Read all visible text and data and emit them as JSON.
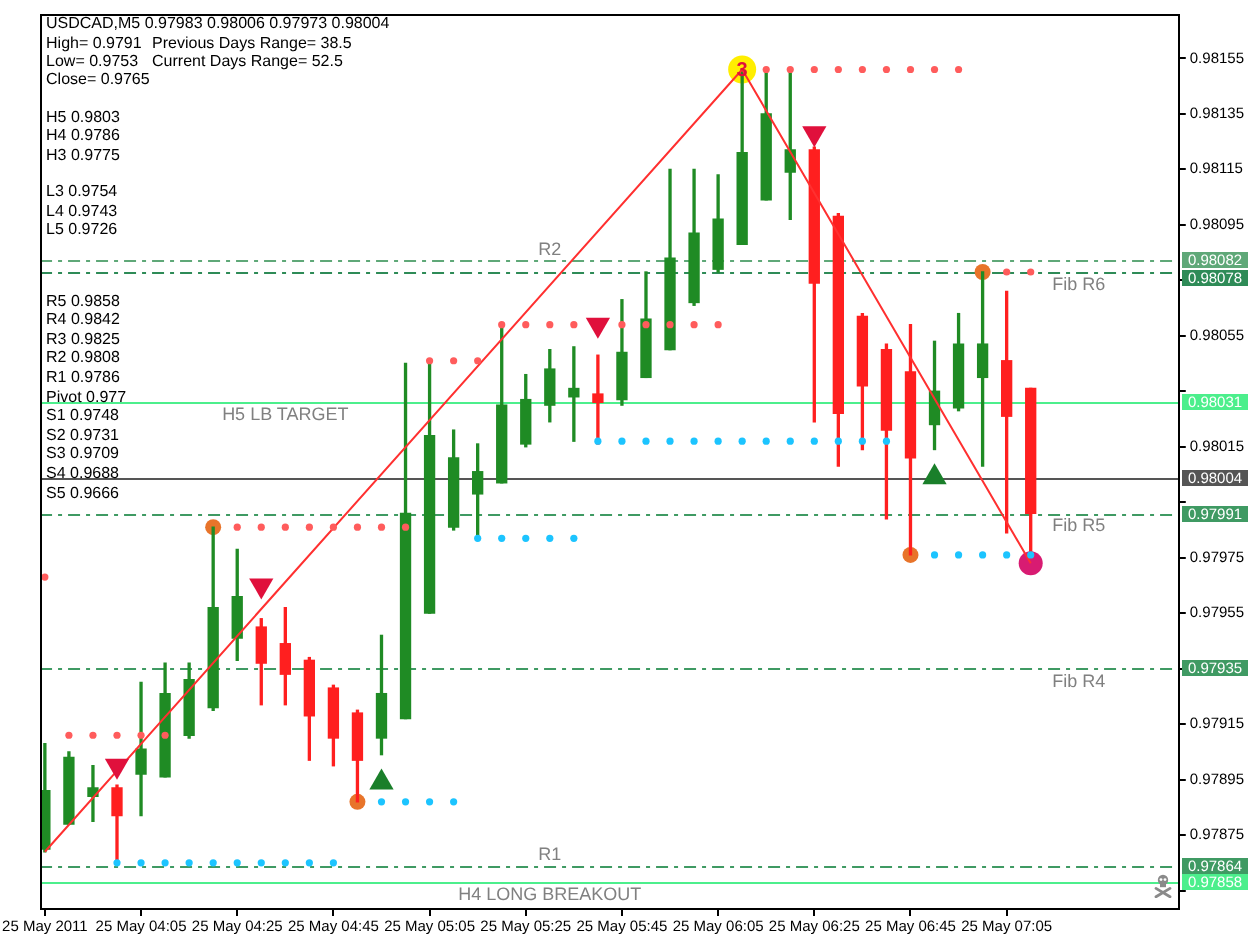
{
  "chart_data": {
    "type": "candlestick",
    "title": "USDCAD,M5 0.97983 0.98006 0.97973 0.98004",
    "annotations": [
      "High= 0.9791",
      "Previous Days Range= 38.5",
      "Low= 0.9753",
      "Current Days Range= 52.5",
      "Close= 0.9765",
      "H5 0.9803",
      "H4 0.9786",
      "H3 0.9775",
      "L3 0.9754",
      "L4 0.9743",
      "L5 0.9726",
      "R5 0.9858",
      "R4 0.9842",
      "R3 0.9825",
      "R2 0.9808",
      "R1 0.9786",
      "Pivot 0.977",
      "S1 0.9748",
      "S2 0.9731",
      "S3 0.9709",
      "S4 0.9688",
      "S5 0.9666",
      {
        "text": "R2",
        "x": "2011-05-25T05:30",
        "y": 0.98082
      },
      {
        "text": "Fib R6",
        "x": "2011-05-25T07:20",
        "y": 0.98078
      },
      {
        "text": "H5 LB TARGET",
        "x": "2011-05-25T04:35",
        "y": 0.98031
      },
      {
        "text": "Fib R5",
        "x": "2011-05-25T07:20",
        "y": 0.97991
      },
      {
        "text": "Fib R4",
        "x": "2011-05-25T07:20",
        "y": 0.97935
      },
      {
        "text": "R1",
        "x": "2011-05-25T05:30",
        "y": 0.97864
      },
      {
        "text": "H4 LONG BREAKOUT",
        "x": "2011-05-25T05:30",
        "y": 0.97858
      },
      {
        "text": "3",
        "x": "2011-05-25T06:10",
        "y": 0.98151
      }
    ],
    "x": [
      "2011-05-25T03:45",
      "2011-05-25T03:50",
      "2011-05-25T03:55",
      "2011-05-25T04:00",
      "2011-05-25T04:05",
      "2011-05-25T04:10",
      "2011-05-25T04:15",
      "2011-05-25T04:20",
      "2011-05-25T04:25",
      "2011-05-25T04:30",
      "2011-05-25T04:35",
      "2011-05-25T04:40",
      "2011-05-25T04:45",
      "2011-05-25T04:50",
      "2011-05-25T04:55",
      "2011-05-25T05:00",
      "2011-05-25T05:05",
      "2011-05-25T05:10",
      "2011-05-25T05:15",
      "2011-05-25T05:20",
      "2011-05-25T05:25",
      "2011-05-25T05:30",
      "2011-05-25T05:35",
      "2011-05-25T05:40",
      "2011-05-25T05:45",
      "2011-05-25T05:50",
      "2011-05-25T05:55",
      "2011-05-25T06:00",
      "2011-05-25T06:05",
      "2011-05-25T06:10",
      "2011-05-25T06:15",
      "2011-05-25T06:20",
      "2011-05-25T06:25",
      "2011-05-25T06:30",
      "2011-05-25T06:35",
      "2011-05-25T06:40",
      "2011-05-25T06:45",
      "2011-05-25T06:50",
      "2011-05-25T06:55",
      "2011-05-25T07:00",
      "2011-05-25T07:05",
      "2011-05-25T07:10"
    ],
    "ohlc": [
      [
        0.9787,
        0.97908,
        0.97869,
        0.97891
      ],
      [
        0.97879,
        0.97905,
        0.97879,
        0.97903
      ],
      [
        0.97889,
        0.979,
        0.9788,
        0.97892
      ],
      [
        0.97892,
        0.97893,
        0.97865,
        0.97882
      ],
      [
        0.97897,
        0.9793,
        0.97882,
        0.97906
      ],
      [
        0.97896,
        0.97937,
        0.97896,
        0.97926
      ],
      [
        0.97911,
        0.97937,
        0.9791,
        0.97931
      ],
      [
        0.97921,
        0.97986,
        0.9792,
        0.97957
      ],
      [
        0.97946,
        0.97978,
        0.97938,
        0.97961
      ],
      [
        0.9795,
        0.97953,
        0.97922,
        0.97937
      ],
      [
        0.97944,
        0.97957,
        0.97922,
        0.97933
      ],
      [
        0.97938,
        0.97939,
        0.97902,
        0.97918
      ],
      [
        0.97928,
        0.97929,
        0.979,
        0.9791
      ],
      [
        0.97919,
        0.9792,
        0.97887,
        0.97902
      ],
      [
        0.9791,
        0.97947,
        0.97904,
        0.97926
      ],
      [
        0.97917,
        0.98045,
        0.97917,
        0.97991
      ],
      [
        0.97955,
        0.98046,
        0.97955,
        0.98019
      ],
      [
        0.97986,
        0.98021,
        0.97985,
        0.98011
      ],
      [
        0.97998,
        0.98016,
        0.97982,
        0.98006
      ],
      [
        0.98002,
        0.98059,
        0.98002,
        0.9803
      ],
      [
        0.98016,
        0.98041,
        0.98015,
        0.98032
      ],
      [
        0.9803,
        0.9805,
        0.98024,
        0.98043
      ],
      [
        0.98033,
        0.98051,
        0.98017,
        0.98036
      ],
      [
        0.98034,
        0.98048,
        0.98016,
        0.98031
      ],
      [
        0.98032,
        0.98068,
        0.9803,
        0.98049
      ],
      [
        0.9804,
        0.98078,
        0.9804,
        0.98061
      ],
      [
        0.9805,
        0.98115,
        0.9805,
        0.98083
      ],
      [
        0.98067,
        0.98115,
        0.98066,
        0.98092
      ],
      [
        0.98079,
        0.98113,
        0.98078,
        0.98097
      ],
      [
        0.98088,
        0.98151,
        0.98088,
        0.98121
      ],
      [
        0.98104,
        0.9815,
        0.98104,
        0.98135
      ],
      [
        0.98114,
        0.9815,
        0.98097,
        0.98122
      ],
      [
        0.98122,
        0.98123,
        0.98024,
        0.98074
      ],
      [
        0.98098,
        0.98099,
        0.98008,
        0.98027
      ],
      [
        0.98062,
        0.98063,
        0.98014,
        0.98037
      ],
      [
        0.9805,
        0.98052,
        0.97989,
        0.98021
      ],
      [
        0.98042,
        0.98059,
        0.97976,
        0.98011
      ],
      [
        0.98023,
        0.98053,
        0.98014,
        0.98035
      ],
      [
        0.98029,
        0.98063,
        0.98028,
        0.98052
      ],
      [
        0.9804,
        0.98078,
        0.98008,
        0.98052
      ],
      [
        0.98046,
        0.98071,
        0.97984,
        0.98026
      ],
      [
        0.98036,
        0.98036,
        0.97975,
        0.97991
      ]
    ],
    "colors": [
      "#1f8b24",
      "#1f8b24",
      "#1f8b24",
      "#ff1f1f",
      "#1f8b24",
      "#1f8b24",
      "#1f8b24",
      "#1f8b24",
      "#1f8b24",
      "#ff1f1f",
      "#ff1f1f",
      "#ff1f1f",
      "#ff1f1f",
      "#ff1f1f",
      "#1f8b24",
      "#1f8b24",
      "#1f8b24",
      "#1f8b24",
      "#1f8b24",
      "#1f8b24",
      "#1f8b24",
      "#1f8b24",
      "#1f8b24",
      "#ff1f1f",
      "#1f8b24",
      "#1f8b24",
      "#1f8b24",
      "#1f8b24",
      "#1f8b24",
      "#1f8b24",
      "#1f8b24",
      "#1f8b24",
      "#ff1f1f",
      "#ff1f1f",
      "#ff1f1f",
      "#ff1f1f",
      "#ff1f1f",
      "#1f8b24",
      "#1f8b24",
      "#1f8b24",
      "#ff1f1f",
      "#ff1f1f"
    ],
    "series": [
      {
        "type": "line",
        "color": "#ff3030",
        "marker": "none",
        "line_style": "solid",
        "x": [
          "2011-05-25T03:45",
          "2011-05-25T06:10",
          "2011-05-25T07:10"
        ],
        "values": [
          0.97869,
          0.98151,
          0.97973
        ]
      },
      {
        "type": "scatter",
        "color": "#ff5c5c",
        "marker": "circle",
        "x": [
          "2011-05-25T03:45",
          "2011-05-25T03:50",
          "2011-05-25T03:55",
          "2011-05-25T04:00",
          "2011-05-25T04:05",
          "2011-05-25T04:10",
          "2011-05-25T04:25",
          "2011-05-25T04:30",
          "2011-05-25T04:35",
          "2011-05-25T04:40",
          "2011-05-25T04:45",
          "2011-05-25T04:50",
          "2011-05-25T04:55",
          "2011-05-25T05:00",
          "2011-05-25T05:05",
          "2011-05-25T05:10",
          "2011-05-25T05:15",
          "2011-05-25T05:20",
          "2011-05-25T05:25",
          "2011-05-25T05:30",
          "2011-05-25T05:35",
          "2011-05-25T05:45",
          "2011-05-25T05:50",
          "2011-05-25T05:55",
          "2011-05-25T06:00",
          "2011-05-25T06:05",
          "2011-05-25T06:15",
          "2011-05-25T06:20",
          "2011-05-25T06:25",
          "2011-05-25T06:30",
          "2011-05-25T06:35",
          "2011-05-25T06:40",
          "2011-05-25T06:45",
          "2011-05-25T06:50",
          "2011-05-25T06:55",
          "2011-05-25T07:05",
          "2011-05-25T07:10"
        ],
        "values": [
          0.97968,
          0.97911,
          0.97911,
          0.97911,
          0.97911,
          0.97911,
          0.97986,
          0.97986,
          0.97986,
          0.97986,
          0.97986,
          0.97986,
          0.97986,
          0.97986,
          0.98046,
          0.98046,
          0.98046,
          0.98059,
          0.98059,
          0.98059,
          0.98059,
          0.98059,
          0.98059,
          0.98059,
          0.98059,
          0.98059,
          0.98151,
          0.98151,
          0.98151,
          0.98151,
          0.98151,
          0.98151,
          0.98151,
          0.98151,
          0.98151,
          0.98078,
          0.98078
        ]
      },
      {
        "type": "scatter",
        "color": "#1cc4ff",
        "marker": "circle",
        "x": [
          "2011-05-25T04:00",
          "2011-05-25T04:05",
          "2011-05-25T04:10",
          "2011-05-25T04:15",
          "2011-05-25T04:20",
          "2011-05-25T04:25",
          "2011-05-25T04:30",
          "2011-05-25T04:35",
          "2011-05-25T04:40",
          "2011-05-25T04:45",
          "2011-05-25T04:55",
          "2011-05-25T05:00",
          "2011-05-25T05:05",
          "2011-05-25T05:10",
          "2011-05-25T05:15",
          "2011-05-25T05:20",
          "2011-05-25T05:25",
          "2011-05-25T05:30",
          "2011-05-25T05:35",
          "2011-05-25T05:40",
          "2011-05-25T05:45",
          "2011-05-25T05:50",
          "2011-05-25T05:55",
          "2011-05-25T06:00",
          "2011-05-25T06:05",
          "2011-05-25T06:10",
          "2011-05-25T06:15",
          "2011-05-25T06:20",
          "2011-05-25T06:25",
          "2011-05-25T06:30",
          "2011-05-25T06:35",
          "2011-05-25T06:40",
          "2011-05-25T06:50",
          "2011-05-25T06:55",
          "2011-05-25T07:00",
          "2011-05-25T07:05",
          "2011-05-25T07:10"
        ],
        "values": [
          0.97865,
          0.97865,
          0.97865,
          0.97865,
          0.97865,
          0.97865,
          0.97865,
          0.97865,
          0.97865,
          0.97865,
          0.97887,
          0.97887,
          0.97887,
          0.97887,
          0.97982,
          0.97982,
          0.97982,
          0.97982,
          0.97982,
          0.98017,
          0.98017,
          0.98017,
          0.98017,
          0.98017,
          0.98017,
          0.98017,
          0.98017,
          0.98017,
          0.98017,
          0.98017,
          0.98017,
          0.98017,
          0.97976,
          0.97976,
          0.97976,
          0.97976,
          0.97976
        ]
      },
      {
        "type": "scatter",
        "color": "#e8742a",
        "marker": "circle",
        "x": [
          "2011-05-25T04:20",
          "2011-05-25T04:50",
          "2011-05-25T06:45",
          "2011-05-25T07:00"
        ],
        "values": [
          0.97986,
          0.97887,
          0.97976,
          0.98078
        ]
      },
      {
        "type": "scatter",
        "color": "#ffee00",
        "marker": "circle",
        "x": [
          "2011-05-25T06:10"
        ],
        "values": [
          0.98151
        ]
      },
      {
        "type": "scatter",
        "color": "#d81b72",
        "marker": "circle",
        "x": [
          "2011-05-25T07:10"
        ],
        "values": [
          0.97973
        ]
      },
      {
        "type": "scatter",
        "color": "#e0103c",
        "marker": "triangle",
        "x": [
          "2011-05-25T04:00",
          "2011-05-25T04:30",
          "2011-05-25T05:40",
          "2011-05-25T06:25"
        ],
        "values": [
          0.979,
          0.97965,
          0.98059,
          0.98128
        ]
      },
      {
        "type": "scatter",
        "color": "#1a7f2a",
        "marker": "triangle",
        "x": [
          "2011-05-25T04:55",
          "2011-05-25T06:50"
        ],
        "values": [
          0.97894,
          0.98004
        ]
      }
    ],
    "ref_lines": [
      {
        "axis": "y",
        "value": 0.98082,
        "label": "0.98082",
        "color": "#5fa878",
        "line_style": "dashed"
      },
      {
        "axis": "y",
        "value": 0.98078,
        "label": "0.98078",
        "color": "#2e8b57",
        "line_style": "dashed"
      },
      {
        "axis": "y",
        "value": 0.98031,
        "label": "0.98031",
        "color": "#4cef8c",
        "line_style": "solid"
      },
      {
        "axis": "y",
        "value": 0.98004,
        "label": "0.98004",
        "color": "#555555",
        "line_style": "solid"
      },
      {
        "axis": "y",
        "value": 0.97991,
        "label": "0.97991",
        "color": "#3f9a63",
        "line_style": "dashed"
      },
      {
        "axis": "y",
        "value": 0.97935,
        "label": "0.97935",
        "color": "#3f9a63",
        "line_style": "dashed"
      },
      {
        "axis": "y",
        "value": 0.97864,
        "label": "0.97864",
        "color": "#3f9a63",
        "line_style": "dashed"
      },
      {
        "axis": "y",
        "value": 0.97858,
        "label": "0.97858",
        "color": "#4cef8c",
        "line_style": "solid"
      }
    ],
    "xlim": [
      "2011-05-25T03:44",
      "2011-05-25T07:41"
    ],
    "xticks": [
      {
        "value": "2011-05-25T03:45",
        "label": "25 May 2011"
      },
      {
        "value": "2011-05-25T04:05",
        "label": "25 May 04:05"
      },
      {
        "value": "2011-05-25T04:25",
        "label": "25 May 04:25"
      },
      {
        "value": "2011-05-25T04:45",
        "label": "25 May 04:45"
      },
      {
        "value": "2011-05-25T05:05",
        "label": "25 May 05:05"
      },
      {
        "value": "2011-05-25T05:25",
        "label": "25 May 05:25"
      },
      {
        "value": "2011-05-25T05:45",
        "label": "25 May 05:45"
      },
      {
        "value": "2011-05-25T06:05",
        "label": "25 May 06:05"
      },
      {
        "value": "2011-05-25T06:25",
        "label": "25 May 06:25"
      },
      {
        "value": "2011-05-25T06:45",
        "label": "25 May 06:45"
      },
      {
        "value": "2011-05-25T07:05",
        "label": "25 May 07:05"
      }
    ],
    "ylim": [
      0.97848,
      0.98171
    ],
    "yticks": [
      {
        "value": 0.97855,
        "label": null
      },
      0.97875,
      0.97895,
      0.97915,
      {
        "value": 0.97935,
        "label": null
      },
      0.97955,
      0.97975,
      {
        "value": 0.97995,
        "label": null
      },
      0.98015,
      {
        "value": 0.98035,
        "label": null
      },
      0.98055,
      {
        "value": 0.98075,
        "label": null
      },
      0.98095,
      0.98115,
      0.98135,
      0.98155
    ],
    "grid": false,
    "legend": false
  }
}
